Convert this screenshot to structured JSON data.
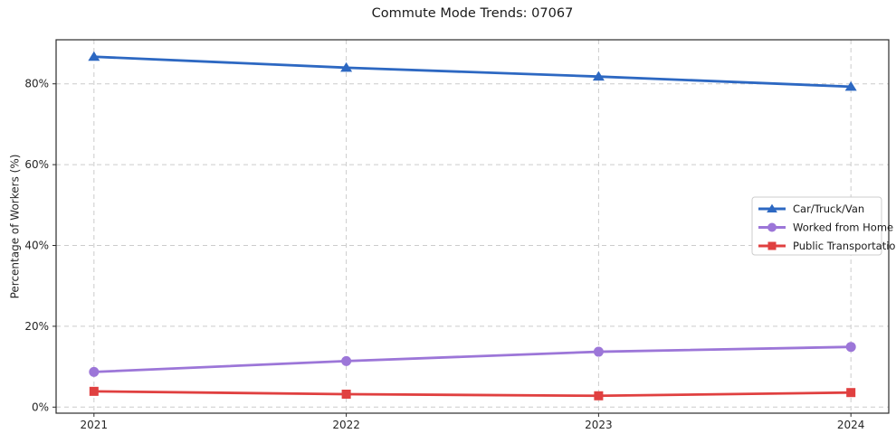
{
  "chart_data": {
    "type": "line",
    "title": "Commute Mode Trends: 07067",
    "xlabel": "",
    "ylabel": "Percentage of Workers (%)",
    "x": [
      2021,
      2022,
      2023,
      2024
    ],
    "x_tick_labels": [
      "2021",
      "2022",
      "2023",
      "2024"
    ],
    "y_ticks": [
      0,
      20,
      40,
      60,
      80
    ],
    "y_tick_labels": [
      "0%",
      "20%",
      "40%",
      "60%",
      "80%"
    ],
    "xlim": [
      2020.85,
      2024.15
    ],
    "ylim": [
      -1.5,
      90.9
    ],
    "grid": true,
    "grid_style": "dashed",
    "legend_position": "center right",
    "series": [
      {
        "name": "Car/Truck/Van",
        "color": "#2d68c2",
        "marker": "triangle",
        "values": [
          86.7,
          84.0,
          81.8,
          79.3
        ]
      },
      {
        "name": "Worked from Home",
        "color": "#9c76d8",
        "marker": "circle",
        "values": [
          8.7,
          11.4,
          13.7,
          14.9
        ]
      },
      {
        "name": "Public Transportation",
        "color": "#e04040",
        "marker": "square",
        "values": [
          3.9,
          3.2,
          2.8,
          3.6
        ]
      }
    ]
  },
  "style": {
    "background": "#ffffff",
    "grid_color": "#cccccc",
    "spine_color": "#2b2b2b",
    "tick_label_color": "#262626",
    "title_color": "#1a1a1a",
    "legend_border_color": "#cccccc",
    "legend_background": "#ffffff"
  }
}
